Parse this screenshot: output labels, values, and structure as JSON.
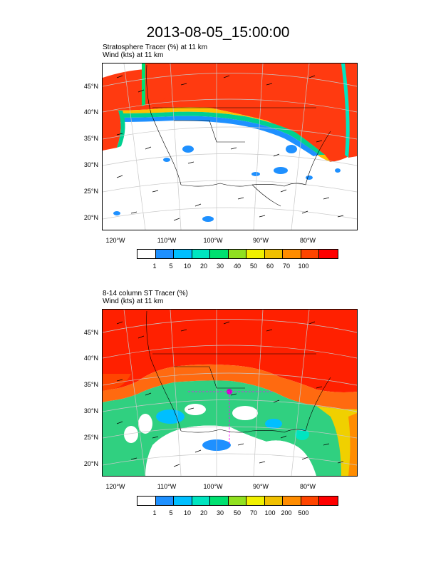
{
  "title": "2013-08-05_15:00:00",
  "panel1": {
    "line1": "Stratosphere Tracer   (%)    at   11 km",
    "line2": "Wind   (kts)     at   11 km",
    "colorbar_labels": [
      "1",
      "5",
      "10",
      "20",
      "30",
      "40",
      "50",
      "60",
      "70",
      "100"
    ]
  },
  "panel2": {
    "line1": "8-14 column ST Tracer   (%)",
    "line2": "Wind   (kts)     at   11 km",
    "colorbar_labels": [
      "1",
      "5",
      "10",
      "20",
      "30",
      "50",
      "70",
      "100",
      "200",
      "500"
    ]
  },
  "lat_labels": [
    "45°N",
    "40°N",
    "35°N",
    "30°N",
    "25°N",
    "20°N"
  ],
  "lon_labels": [
    "120°W",
    "110°W",
    "100°W",
    "90°W",
    "80°W"
  ],
  "colors": {
    "scale": [
      "#ffffff",
      "#1e90ff",
      "#00bfff",
      "#00e5c0",
      "#00e070",
      "#90e020",
      "#f0f000",
      "#f0c000",
      "#ff8c00",
      "#ff4500",
      "#ff0000"
    ]
  }
}
